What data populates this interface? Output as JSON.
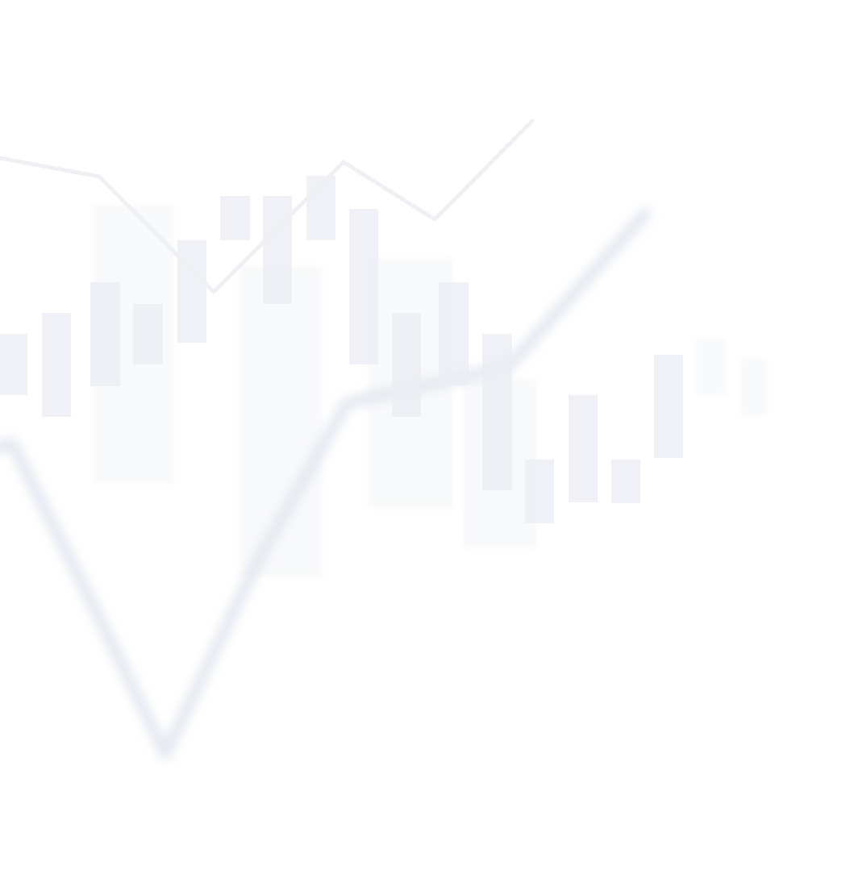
{
  "background": {
    "kind": "decorative-financial-chart-watermark",
    "colors": {
      "page": "#ffffff",
      "candles": "#ebedf3",
      "ghost_blocks": "#f6f7f9",
      "sharp_line": "#eeeff3",
      "blurred_line": "#e2e6ef"
    },
    "candle_count": 16,
    "ghost_block_count": 4,
    "line_count": 2
  }
}
